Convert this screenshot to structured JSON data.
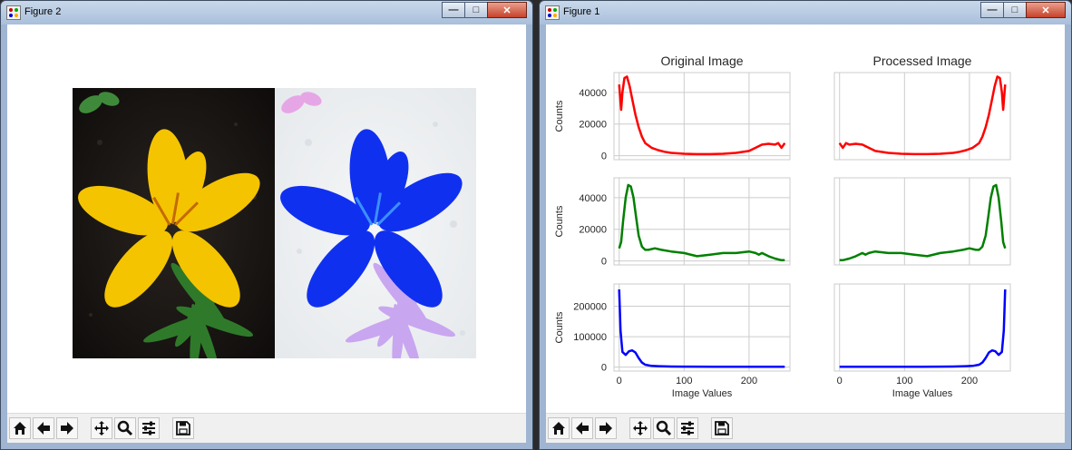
{
  "window_left": {
    "title": "Figure 2",
    "controls": {
      "minimize": "—",
      "maximize": "□",
      "close": "✕"
    },
    "image_icon": "python-figure-icon"
  },
  "window_right": {
    "title": "Figure 1",
    "controls": {
      "minimize": "—",
      "maximize": "□",
      "close": "✕"
    }
  },
  "toolbar_icons": [
    "home-icon",
    "back-arrow-icon",
    "forward-arrow-icon",
    "pan-icon",
    "zoom-icon",
    "configure-subplots-icon",
    "save-icon"
  ],
  "colors": {
    "red": "#ff0000",
    "green": "#008000",
    "blue": "#0000ff",
    "grid": "#cccccc"
  },
  "chart_data": [
    {
      "type": "line",
      "title": "Original Image",
      "row": 0,
      "col": 0,
      "ylabel": "Counts",
      "xlabel": "",
      "ylim": [
        0,
        50000
      ],
      "yticks": [
        0,
        20000,
        40000
      ],
      "xticks": [
        0,
        100,
        200
      ],
      "color": "#ff0000",
      "x": [
        0,
        3,
        5,
        8,
        12,
        16,
        20,
        25,
        30,
        35,
        40,
        50,
        60,
        70,
        80,
        100,
        120,
        140,
        160,
        180,
        200,
        210,
        220,
        230,
        240,
        245,
        250,
        255
      ],
      "y": [
        45000,
        29000,
        40000,
        49000,
        50000,
        44000,
        36000,
        26000,
        18000,
        12000,
        8000,
        5000,
        3500,
        2500,
        1800,
        1200,
        1000,
        1000,
        1200,
        1800,
        3000,
        5000,
        7000,
        7500,
        7000,
        8000,
        5000,
        8000
      ]
    },
    {
      "type": "line",
      "title": "Processed Image",
      "row": 0,
      "col": 1,
      "ylabel": "",
      "xlabel": "",
      "ylim": [
        0,
        50000
      ],
      "yticks": [],
      "xticks": [
        0,
        100,
        200
      ],
      "color": "#ff0000",
      "x": [
        0,
        5,
        10,
        15,
        25,
        35,
        45,
        55,
        75,
        95,
        115,
        135,
        155,
        175,
        185,
        195,
        205,
        215,
        220,
        225,
        230,
        235,
        239,
        243,
        247,
        250,
        252,
        255
      ],
      "y": [
        8000,
        5000,
        8000,
        7000,
        7500,
        7000,
        5000,
        3000,
        1800,
        1200,
        1000,
        1000,
        1200,
        1800,
        2500,
        3500,
        5000,
        8000,
        12000,
        18000,
        26000,
        36000,
        44000,
        50000,
        49000,
        40000,
        29000,
        45000
      ]
    },
    {
      "type": "line",
      "title": "",
      "row": 1,
      "col": 0,
      "ylabel": "Counts",
      "xlabel": "",
      "ylim": [
        0,
        50000
      ],
      "yticks": [
        0,
        20000,
        40000
      ],
      "xticks": [
        0,
        100,
        200
      ],
      "color": "#008000",
      "x": [
        0,
        3,
        6,
        10,
        14,
        18,
        22,
        26,
        30,
        35,
        40,
        45,
        55,
        65,
        80,
        100,
        120,
        140,
        160,
        180,
        200,
        210,
        215,
        220,
        230,
        240,
        250,
        255
      ],
      "y": [
        8000,
        12000,
        25000,
        40000,
        48000,
        47000,
        40000,
        28000,
        16000,
        9000,
        7000,
        7000,
        8000,
        7000,
        6000,
        5000,
        3000,
        4000,
        5000,
        5000,
        6000,
        5000,
        4000,
        5000,
        3000,
        1500,
        500,
        500
      ]
    },
    {
      "type": "line",
      "title": "",
      "row": 1,
      "col": 1,
      "ylabel": "",
      "xlabel": "",
      "ylim": [
        0,
        50000
      ],
      "yticks": [],
      "xticks": [
        0,
        100,
        200
      ],
      "color": "#008000",
      "x": [
        0,
        5,
        15,
        25,
        35,
        40,
        45,
        55,
        75,
        95,
        115,
        135,
        155,
        175,
        190,
        200,
        210,
        215,
        220,
        225,
        229,
        233,
        237,
        241,
        245,
        249,
        252,
        255
      ],
      "y": [
        500,
        500,
        1500,
        3000,
        5000,
        4000,
        5000,
        6000,
        5000,
        5000,
        4000,
        3000,
        5000,
        6000,
        7000,
        8000,
        7000,
        7000,
        9000,
        16000,
        28000,
        40000,
        47000,
        48000,
        40000,
        25000,
        12000,
        8000
      ]
    },
    {
      "type": "line",
      "title": "",
      "row": 2,
      "col": 0,
      "ylabel": "Counts",
      "xlabel": "Image Values",
      "ylim": [
        0,
        260000
      ],
      "yticks": [
        0,
        100000,
        200000
      ],
      "xticks": [
        0,
        100,
        200
      ],
      "color": "#0000ff",
      "x": [
        0,
        2,
        5,
        10,
        15,
        20,
        25,
        30,
        35,
        40,
        50,
        60,
        80,
        100,
        150,
        200,
        255
      ],
      "y": [
        255000,
        120000,
        50000,
        40000,
        52000,
        55000,
        48000,
        30000,
        15000,
        8000,
        4000,
        3000,
        2000,
        1500,
        1000,
        1000,
        1000
      ]
    },
    {
      "type": "line",
      "title": "",
      "row": 2,
      "col": 1,
      "ylabel": "",
      "xlabel": "Image Values",
      "ylim": [
        0,
        260000
      ],
      "yticks": [],
      "xticks": [
        0,
        100,
        200
      ],
      "color": "#0000ff",
      "x": [
        0,
        55,
        105,
        155,
        175,
        195,
        205,
        215,
        220,
        225,
        230,
        235,
        240,
        245,
        250,
        253,
        255
      ],
      "y": [
        1000,
        1000,
        1000,
        1500,
        2000,
        3000,
        4000,
        8000,
        15000,
        30000,
        48000,
        55000,
        52000,
        40000,
        50000,
        120000,
        255000
      ]
    }
  ]
}
